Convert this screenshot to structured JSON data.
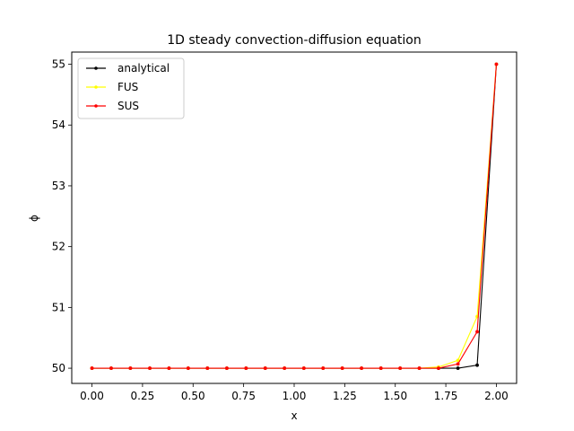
{
  "chart_data": {
    "type": "line",
    "title": "1D steady convection-diffusion equation",
    "xlabel": "x",
    "ylabel": "ϕ",
    "xlim": [
      -0.1,
      2.1
    ],
    "ylim": [
      49.75,
      55.2
    ],
    "xticks": [
      "0.00",
      "0.25",
      "0.50",
      "0.75",
      "1.00",
      "1.25",
      "1.50",
      "1.75",
      "2.00"
    ],
    "xtick_values": [
      0,
      0.25,
      0.5,
      0.75,
      1.0,
      1.25,
      1.5,
      1.75,
      2.0
    ],
    "yticks": [
      "50",
      "51",
      "52",
      "53",
      "54",
      "55"
    ],
    "ytick_values": [
      50,
      51,
      52,
      53,
      54,
      55
    ],
    "grid": false,
    "legend_position": "top-left",
    "x": [
      0.0,
      0.095,
      0.19,
      0.286,
      0.381,
      0.476,
      0.571,
      0.667,
      0.762,
      0.857,
      0.952,
      1.048,
      1.143,
      1.238,
      1.333,
      1.429,
      1.524,
      1.619,
      1.714,
      1.81,
      1.905,
      2.0
    ],
    "series": [
      {
        "name": "analytical",
        "color": "#000000",
        "values": [
          50,
          50,
          50,
          50,
          50,
          50,
          50,
          50,
          50,
          50,
          50,
          50,
          50,
          50,
          50,
          50,
          50,
          50,
          50,
          50.0,
          50.05,
          55
        ]
      },
      {
        "name": "FUS",
        "color": "#ffff00",
        "values": [
          50,
          50,
          50,
          50,
          50,
          50,
          50,
          50,
          50,
          50,
          50,
          50,
          50,
          50,
          50,
          50,
          50,
          50,
          50.02,
          50.13,
          50.85,
          55
        ]
      },
      {
        "name": "SUS",
        "color": "#ff0000",
        "values": [
          50,
          50,
          50,
          50,
          50,
          50,
          50,
          50,
          50,
          50,
          50,
          50,
          50,
          50,
          50,
          50,
          50,
          50,
          50.0,
          50.07,
          50.6,
          55
        ]
      }
    ]
  }
}
